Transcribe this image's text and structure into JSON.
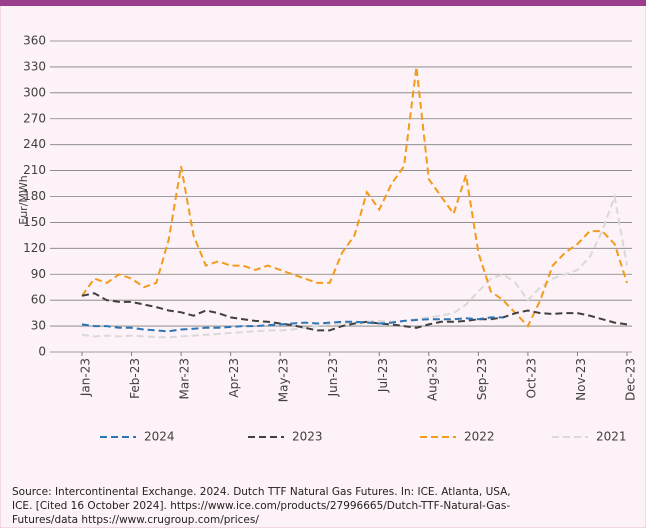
{
  "chart_data": {
    "type": "line",
    "y_axis_label": "Eur/MWh",
    "x": [
      0,
      0.25,
      0.5,
      0.75,
      1,
      1.25,
      1.5,
      1.75,
      2,
      2.25,
      2.5,
      2.75,
      3,
      3.25,
      3.5,
      3.75,
      4,
      4.25,
      4.5,
      4.75,
      5,
      5.25,
      5.5,
      5.75,
      6,
      6.25,
      6.5,
      6.75,
      7,
      7.25,
      7.5,
      7.75,
      8,
      8.25,
      8.5,
      8.75,
      9,
      9.25,
      9.5,
      9.75,
      10,
      10.25,
      10.5,
      10.75,
      11
    ],
    "xlim": [
      0,
      11
    ],
    "xticks": [
      {
        "value": 0,
        "label": "Jan-23"
      },
      {
        "value": 1,
        "label": "Feb-23"
      },
      {
        "value": 2,
        "label": "Mar-23"
      },
      {
        "value": 3,
        "label": "Apr-23"
      },
      {
        "value": 4,
        "label": "May-23"
      },
      {
        "value": 5,
        "label": "Jun-23"
      },
      {
        "value": 6,
        "label": "Jul-23"
      },
      {
        "value": 7,
        "label": "Aug-23"
      },
      {
        "value": 8,
        "label": "Sep-23"
      },
      {
        "value": 9,
        "label": "Oct-23"
      },
      {
        "value": 10,
        "label": "Nov-23"
      },
      {
        "value": 11,
        "label": "Dec-23"
      }
    ],
    "ylim": [
      0,
      360
    ],
    "yticks": [
      0,
      30,
      60,
      90,
      120,
      150,
      180,
      210,
      240,
      270,
      300,
      330,
      360
    ],
    "grid": true,
    "legend": "bottom",
    "series": [
      {
        "name": "2024",
        "color": "#2e75b6",
        "values": [
          32,
          30,
          30,
          28,
          28,
          26,
          25,
          24,
          26,
          27,
          28,
          28,
          29,
          30,
          30,
          31,
          32,
          33,
          34,
          33,
          34,
          35,
          35,
          34,
          33,
          34,
          36,
          37,
          38,
          38,
          38,
          39,
          38,
          40,
          40,
          null,
          null,
          null,
          null,
          null,
          null,
          null,
          null,
          null,
          null
        ]
      },
      {
        "name": "2023",
        "color": "#404040",
        "values": [
          65,
          68,
          60,
          58,
          58,
          55,
          52,
          48,
          46,
          42,
          48,
          45,
          40,
          38,
          36,
          35,
          33,
          31,
          28,
          25,
          25,
          30,
          33,
          35,
          33,
          32,
          30,
          28,
          32,
          35,
          35,
          36,
          38,
          38,
          40,
          45,
          48,
          45,
          44,
          45,
          45,
          42,
          38,
          34,
          32
        ]
      },
      {
        "name": "2022",
        "color": "#f29b1d",
        "values": [
          65,
          85,
          80,
          90,
          85,
          75,
          80,
          130,
          215,
          135,
          100,
          105,
          100,
          100,
          95,
          100,
          95,
          90,
          85,
          80,
          80,
          115,
          135,
          185,
          165,
          195,
          215,
          330,
          200,
          180,
          160,
          205,
          115,
          70,
          60,
          45,
          30,
          60,
          100,
          115,
          125,
          140,
          140,
          125,
          80
        ]
      },
      {
        "name": "2021",
        "color": "#d9d9d9",
        "values": [
          20,
          18,
          19,
          18,
          19,
          18,
          17,
          17,
          18,
          19,
          20,
          21,
          22,
          23,
          24,
          25,
          25,
          26,
          28,
          30,
          32,
          33,
          34,
          35,
          36,
          35,
          36,
          38,
          40,
          42,
          45,
          55,
          70,
          85,
          90,
          80,
          60,
          75,
          85,
          90,
          95,
          110,
          140,
          180,
          100
        ]
      }
    ]
  },
  "source_lines": [
    "Source: Intercontinental Exchange. 2024. Dutch TTF Natural Gas Futures. In: ICE. Atlanta, USA,",
    "ICE. [Cited 16 October 2024]. https://www.ice.com/products/27996665/Dutch-TTF-Natural-Gas-",
    "Futures/data  https://www.crugroup.com/prices/"
  ]
}
